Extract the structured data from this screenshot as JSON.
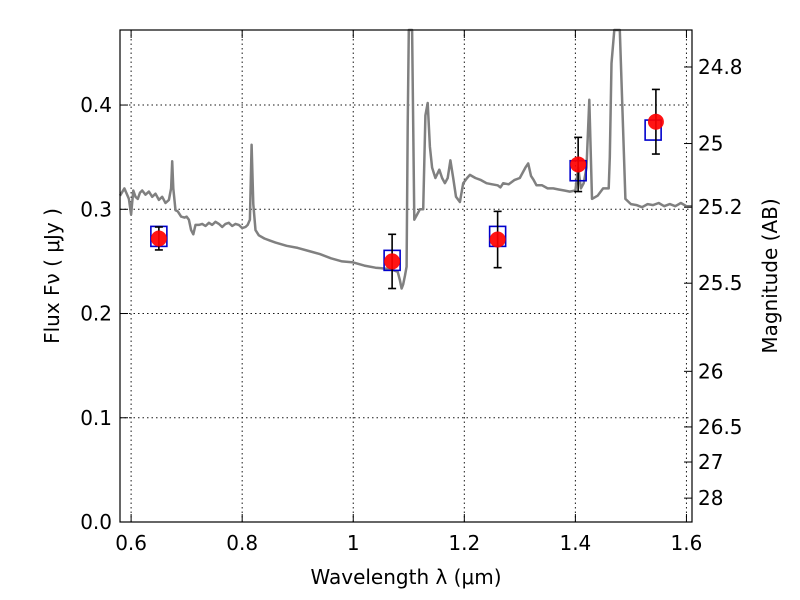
{
  "chart_data": {
    "type": "scatter",
    "title": "",
    "xlabel": "Wavelength  λ (μm)",
    "ylabel": "Flux  Fν  ( μJy )",
    "y2label": "Magnitude (AB)",
    "xlim": [
      0.58,
      1.61
    ],
    "ylim": [
      0.0,
      0.472
    ],
    "grid": true,
    "x_ticks": [
      0.6,
      0.8,
      1.0,
      1.2,
      1.4,
      1.6
    ],
    "x_tick_labels": [
      "0.6",
      "0.8",
      "1",
      "1.2",
      "1.4",
      "1.6"
    ],
    "y_ticks": [
      0.0,
      0.1,
      0.2,
      0.3,
      0.4
    ],
    "y_tick_labels": [
      "0.0",
      "0.1",
      "0.2",
      "0.3",
      "0.4"
    ],
    "y2_ticks": [
      {
        "label": "24.8",
        "value": 24.8
      },
      {
        "label": "25",
        "value": 25.0
      },
      {
        "label": "25.2",
        "value": 25.2
      },
      {
        "label": "25.5",
        "value": 25.5
      },
      {
        "label": "26",
        "value": 26.0
      },
      {
        "label": "26.5",
        "value": 26.5
      },
      {
        "label": "27",
        "value": 27.0
      },
      {
        "label": "28",
        "value": 28.0
      }
    ],
    "series": [
      {
        "kind": "line",
        "color": "#808080",
        "x": [
          0.58,
          0.588,
          0.596,
          0.6,
          0.604,
          0.608,
          0.612,
          0.616,
          0.62,
          0.626,
          0.632,
          0.638,
          0.644,
          0.65,
          0.656,
          0.662,
          0.668,
          0.672,
          0.674,
          0.676,
          0.68,
          0.684,
          0.69,
          0.696,
          0.7,
          0.704,
          0.708,
          0.712,
          0.716,
          0.722,
          0.728,
          0.734,
          0.74,
          0.746,
          0.752,
          0.758,
          0.764,
          0.77,
          0.776,
          0.782,
          0.788,
          0.794,
          0.8,
          0.806,
          0.81,
          0.814,
          0.817,
          0.82,
          0.824,
          0.83,
          0.84,
          0.85,
          0.86,
          0.88,
          0.9,
          0.92,
          0.94,
          0.96,
          0.98,
          1.0,
          1.02,
          1.04,
          1.06,
          1.07,
          1.08,
          1.084,
          1.087,
          1.09,
          1.093,
          1.096,
          1.098,
          1.1,
          1.103,
          1.106,
          1.11,
          1.115,
          1.12,
          1.126,
          1.13,
          1.134,
          1.138,
          1.142,
          1.148,
          1.155,
          1.16,
          1.165,
          1.17,
          1.175,
          1.18,
          1.185,
          1.192,
          1.198,
          1.205,
          1.21,
          1.22,
          1.23,
          1.24,
          1.25,
          1.26,
          1.265,
          1.27,
          1.28,
          1.29,
          1.3,
          1.31,
          1.315,
          1.32,
          1.325,
          1.33,
          1.34,
          1.35,
          1.36,
          1.37,
          1.38,
          1.39,
          1.4,
          1.405,
          1.41,
          1.415,
          1.42,
          1.425,
          1.43,
          1.44,
          1.45,
          1.46,
          1.462,
          1.465,
          1.47,
          1.475,
          1.48,
          1.49,
          1.5,
          1.51,
          1.52,
          1.53,
          1.54,
          1.55,
          1.56,
          1.57,
          1.58,
          1.59,
          1.6,
          1.61
        ],
        "y": [
          0.313,
          0.32,
          0.31,
          0.295,
          0.318,
          0.312,
          0.31,
          0.316,
          0.318,
          0.314,
          0.317,
          0.312,
          0.315,
          0.309,
          0.312,
          0.306,
          0.309,
          0.32,
          0.346,
          0.32,
          0.299,
          0.298,
          0.293,
          0.292,
          0.293,
          0.29,
          0.28,
          0.276,
          0.285,
          0.285,
          0.286,
          0.284,
          0.287,
          0.285,
          0.288,
          0.286,
          0.283,
          0.286,
          0.287,
          0.284,
          0.286,
          0.285,
          0.282,
          0.283,
          0.285,
          0.29,
          0.362,
          0.305,
          0.28,
          0.275,
          0.272,
          0.27,
          0.268,
          0.265,
          0.263,
          0.26,
          0.257,
          0.253,
          0.25,
          0.249,
          0.246,
          0.244,
          0.243,
          0.242,
          0.24,
          0.232,
          0.224,
          0.228,
          0.236,
          0.245,
          0.38,
          0.475,
          0.475,
          0.475,
          0.29,
          0.295,
          0.3,
          0.3,
          0.39,
          0.402,
          0.36,
          0.34,
          0.33,
          0.338,
          0.33,
          0.325,
          0.33,
          0.347,
          0.33,
          0.312,
          0.307,
          0.325,
          0.33,
          0.333,
          0.33,
          0.328,
          0.325,
          0.324,
          0.323,
          0.321,
          0.325,
          0.324,
          0.328,
          0.33,
          0.34,
          0.344,
          0.332,
          0.328,
          0.323,
          0.323,
          0.32,
          0.32,
          0.319,
          0.318,
          0.317,
          0.318,
          0.34,
          0.32,
          0.325,
          0.34,
          0.405,
          0.31,
          0.313,
          0.32,
          0.32,
          0.35,
          0.44,
          0.475,
          0.475,
          0.475,
          0.31,
          0.305,
          0.304,
          0.302,
          0.305,
          0.304,
          0.306,
          0.303,
          0.305,
          0.303,
          0.306,
          0.303,
          0.303
        ]
      },
      {
        "kind": "model-box",
        "color": "#0000cc",
        "x": [
          0.65,
          1.07,
          1.26,
          1.405,
          1.54
        ],
        "y": [
          0.274,
          0.251,
          0.274,
          0.337,
          0.376
        ]
      },
      {
        "kind": "measurement",
        "color": "#ff0000",
        "x": [
          0.65,
          1.07,
          1.26,
          1.405,
          1.545
        ],
        "y": [
          0.272,
          0.25,
          0.271,
          0.343,
          0.384
        ],
        "yerr": [
          0.011,
          0.026,
          0.027,
          0.026,
          0.031
        ]
      }
    ]
  }
}
